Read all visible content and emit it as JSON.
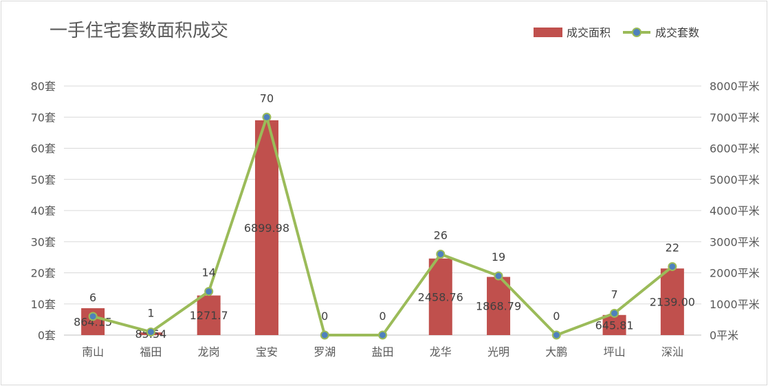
{
  "chart_data": {
    "type": "bar",
    "title": "一手住宅套数面积成交",
    "categories": [
      "南山",
      "福田",
      "龙岗",
      "宝安",
      "罗湖",
      "盐田",
      "龙华",
      "光明",
      "大鹏",
      "坪山",
      "深汕"
    ],
    "series": [
      {
        "name": "成交面积",
        "type": "bar",
        "axis": "right",
        "color": "#c0504d",
        "values": [
          864.15,
          85.54,
          1271.7,
          6899.98,
          0,
          0,
          2458.76,
          1868.79,
          0,
          645.81,
          2139.0
        ],
        "labels": [
          "864.15",
          "85.54",
          "1271.7",
          "6899.98",
          "",
          "",
          "2458.76",
          "1868.79",
          "",
          "645.81",
          "2139.00"
        ]
      },
      {
        "name": "成交套数",
        "type": "line",
        "axis": "left",
        "color": "#9bbb59",
        "marker_color": "#4f81bd",
        "values": [
          6,
          1,
          14,
          70,
          0,
          0,
          26,
          19,
          0,
          7,
          22
        ],
        "labels": [
          "6",
          "1",
          "14",
          "70",
          "0",
          "0",
          "26",
          "19",
          "0",
          "7",
          "22"
        ]
      }
    ],
    "y_left": {
      "ylim": [
        0,
        80
      ],
      "ticks": [
        "0套",
        "10套",
        "20套",
        "30套",
        "40套",
        "50套",
        "60套",
        "70套",
        "80套"
      ]
    },
    "y_right": {
      "ylim": [
        0,
        8000
      ],
      "ticks": [
        "0平米",
        "1000平米",
        "2000平米",
        "3000平米",
        "4000平米",
        "5000平米",
        "6000平米",
        "7000平米",
        "8000平米"
      ]
    },
    "grid": true,
    "legend": "top-right"
  }
}
